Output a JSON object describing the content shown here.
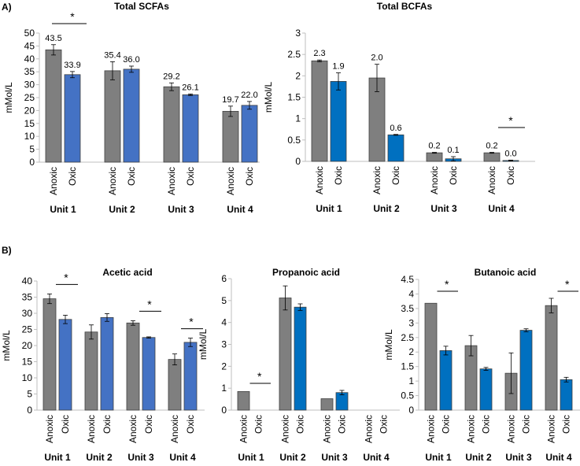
{
  "figure": {
    "panel_labels": [
      "A)",
      "B)"
    ],
    "condition_labels": [
      "Anoxic",
      "Oxic"
    ],
    "colors": {
      "anoxic": "#7f7f7f",
      "oxic_a": "#4472c4",
      "oxic_b": "#4472c4",
      "oxic_c": "#0070c0",
      "edge": "#404040",
      "axis": "#bfbfbf"
    }
  },
  "chart_data": [
    {
      "id": "total-scfas",
      "type": "bar",
      "title": "Total SCFAs",
      "ylabel": "mMol/L",
      "ylim": [
        0,
        50
      ],
      "yticks": [
        0,
        5,
        10,
        15,
        20,
        25,
        30,
        35,
        40,
        45,
        50
      ],
      "categories": [
        "Unit 1",
        "Unit 2",
        "Unit 3",
        "Unit 4"
      ],
      "series": [
        {
          "name": "Anoxic",
          "values": [
            43.5,
            35.4,
            29.2,
            19.7
          ],
          "errors": [
            2.0,
            3.5,
            1.5,
            2.0
          ],
          "labels": [
            "43.5",
            "35.4",
            "29.2",
            "19.7"
          ]
        },
        {
          "name": "Oxic",
          "values": [
            33.9,
            36.0,
            26.1,
            22.0
          ],
          "errors": [
            1.2,
            1.2,
            0.3,
            1.5
          ],
          "labels": [
            "33.9",
            "36.0",
            "26.1",
            "22.0"
          ]
        }
      ],
      "significance": [
        {
          "category": "Unit 1",
          "label": "*"
        }
      ]
    },
    {
      "id": "total-bcfas",
      "type": "bar",
      "title": "Total BCFAs",
      "ylabel": "mMol/L",
      "ylim": [
        0,
        3
      ],
      "yticks": [
        0,
        0.5,
        1,
        1.5,
        2,
        2.5,
        3
      ],
      "categories": [
        "Unit 1",
        "Unit 2",
        "Unit 3",
        "Unit 4"
      ],
      "series": [
        {
          "name": "Anoxic",
          "values": [
            2.35,
            1.95,
            0.2,
            0.2
          ],
          "errors": [
            0.02,
            0.32,
            0.01,
            0.01
          ],
          "labels": [
            "2.3",
            "2.0",
            "0.2",
            "0.2"
          ]
        },
        {
          "name": "Oxic",
          "values": [
            1.87,
            0.62,
            0.06,
            0.02
          ],
          "errors": [
            0.2,
            0.01,
            0.05,
            0.01
          ],
          "labels": [
            "1.9",
            "0.6",
            "0.1",
            "0.0"
          ]
        }
      ],
      "significance": [
        {
          "category": "Unit 4",
          "label": "*"
        }
      ]
    },
    {
      "id": "acetic-acid",
      "type": "bar",
      "title": "Acetic acid",
      "ylabel": "mMol/L",
      "ylim": [
        0,
        40
      ],
      "yticks": [
        0,
        5,
        10,
        15,
        20,
        25,
        30,
        35,
        40
      ],
      "categories": [
        "Unit 1",
        "Unit 2",
        "Unit 3",
        "Unit 4"
      ],
      "series": [
        {
          "name": "Anoxic",
          "values": [
            34.5,
            24.2,
            27.0,
            15.7
          ],
          "errors": [
            1.5,
            2.2,
            0.7,
            1.7
          ]
        },
        {
          "name": "Oxic",
          "values": [
            28.1,
            28.7,
            22.5,
            21.0
          ],
          "errors": [
            1.3,
            1.2,
            0.2,
            1.3
          ]
        }
      ],
      "significance": [
        {
          "category": "Unit 1",
          "label": "*"
        },
        {
          "category": "Unit 3",
          "label": "*"
        },
        {
          "category": "Unit 4",
          "label": "*"
        }
      ]
    },
    {
      "id": "propanoic-acid",
      "type": "bar",
      "title": "Propanoic acid",
      "ylabel": "mMol/L",
      "ylim": [
        0,
        6
      ],
      "yticks": [
        0,
        1,
        2,
        3,
        4,
        5,
        6
      ],
      "categories": [
        "Unit 1",
        "Unit 2",
        "Unit 3",
        "Unit 4"
      ],
      "series": [
        {
          "name": "Anoxic",
          "values": [
            0.85,
            5.12,
            0.52,
            0
          ],
          "errors": [
            0,
            0.55,
            0,
            0
          ]
        },
        {
          "name": "Oxic",
          "values": [
            0,
            4.7,
            0.8,
            0
          ],
          "errors": [
            0,
            0.15,
            0.1,
            0
          ]
        }
      ],
      "significance": [
        {
          "category": "Unit 1",
          "label": "*"
        }
      ]
    },
    {
      "id": "butanoic-acid",
      "type": "bar",
      "title": "Butanoic acid",
      "ylabel": "mMol/L",
      "ylim": [
        0,
        4.5
      ],
      "yticks": [
        0,
        0.5,
        1,
        1.5,
        2,
        2.5,
        3,
        3.5,
        4,
        4.5
      ],
      "categories": [
        "Unit 1",
        "Unit 2",
        "Unit 3",
        "Unit 4"
      ],
      "series": [
        {
          "name": "Anoxic",
          "values": [
            3.68,
            2.22,
            1.27,
            3.6
          ],
          "errors": [
            0,
            0.35,
            0.7,
            0.25
          ]
        },
        {
          "name": "Oxic",
          "values": [
            2.05,
            1.42,
            2.75,
            1.05
          ],
          "errors": [
            0.15,
            0.05,
            0.05,
            0.08
          ]
        }
      ],
      "significance": [
        {
          "category": "Unit 1",
          "label": "*"
        },
        {
          "category": "Unit 4",
          "label": "*"
        }
      ]
    }
  ]
}
